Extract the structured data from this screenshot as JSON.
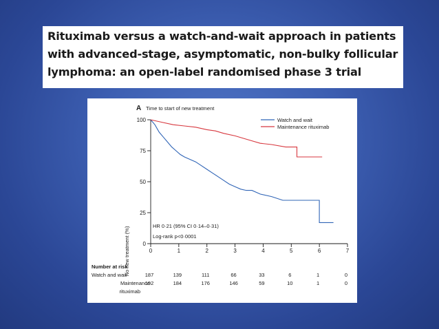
{
  "slide": {
    "title_lines": [
      "Rituximab versus a watch-and-wait approach in patients",
      "with advanced-stage, asymptomatic, non-bulky follicular",
      "lymphoma: an open-label randomised phase 3 trial"
    ]
  },
  "chart_data": {
    "type": "line",
    "panel_label": "A",
    "title": "Time to start of new treatment",
    "ylabel": "No new treatment (%)",
    "xlabel": "",
    "xlim": [
      0,
      7
    ],
    "ylim": [
      0,
      100
    ],
    "x_ticks": [
      "0",
      "1",
      "2",
      "3",
      "4",
      "5",
      "6",
      "7"
    ],
    "y_ticks": [
      "0",
      "25",
      "50",
      "75",
      "100"
    ],
    "legend_position": "top-right",
    "series": [
      {
        "name": "Watch and wait",
        "color": "#2f64b6",
        "points": [
          [
            0,
            100
          ],
          [
            0.15,
            96
          ],
          [
            0.3,
            90
          ],
          [
            0.45,
            86
          ],
          [
            0.6,
            82
          ],
          [
            0.75,
            78
          ],
          [
            0.9,
            75
          ],
          [
            1.05,
            72
          ],
          [
            1.2,
            70
          ],
          [
            1.4,
            68
          ],
          [
            1.6,
            66
          ],
          [
            1.8,
            63
          ],
          [
            2.0,
            60
          ],
          [
            2.2,
            57
          ],
          [
            2.4,
            54
          ],
          [
            2.6,
            51
          ],
          [
            2.8,
            48
          ],
          [
            3.0,
            46
          ],
          [
            3.2,
            44
          ],
          [
            3.4,
            43
          ],
          [
            3.6,
            43
          ],
          [
            3.9,
            40
          ],
          [
            4.3,
            38
          ],
          [
            4.7,
            35
          ],
          [
            5.2,
            35
          ],
          [
            5.6,
            35
          ],
          [
            6.0,
            35
          ],
          [
            6.0,
            17
          ],
          [
            6.5,
            17
          ]
        ]
      },
      {
        "name": "Maintenance rituximab",
        "color": "#d7363d",
        "points": [
          [
            0,
            100
          ],
          [
            0.4,
            98
          ],
          [
            0.8,
            96
          ],
          [
            1.2,
            95
          ],
          [
            1.6,
            94
          ],
          [
            2.0,
            92
          ],
          [
            2.3,
            91
          ],
          [
            2.6,
            89
          ],
          [
            3.0,
            87
          ],
          [
            3.3,
            85
          ],
          [
            3.6,
            83
          ],
          [
            3.9,
            81
          ],
          [
            4.3,
            80
          ],
          [
            4.8,
            78
          ],
          [
            5.0,
            78
          ],
          [
            5.2,
            78
          ],
          [
            5.2,
            70
          ],
          [
            5.6,
            70
          ],
          [
            6.0,
            70
          ],
          [
            6.1,
            70
          ]
        ]
      }
    ],
    "annotation_lines": [
      "HR 0·21 (95% CI 0·14–0·31)",
      "Log-rank p<0·0001"
    ],
    "risk_table": {
      "heading": "Number at risk",
      "rows": [
        {
          "label": "Watch and wait",
          "label_line2": "",
          "values": [
            "187",
            "139",
            "111",
            "66",
            "33",
            "6",
            "1",
            "0"
          ]
        },
        {
          "label": "Maintenance",
          "label_line2": "rituximab",
          "values": [
            "192",
            "184",
            "176",
            "146",
            "59",
            "10",
            "1",
            "0"
          ]
        }
      ]
    }
  }
}
